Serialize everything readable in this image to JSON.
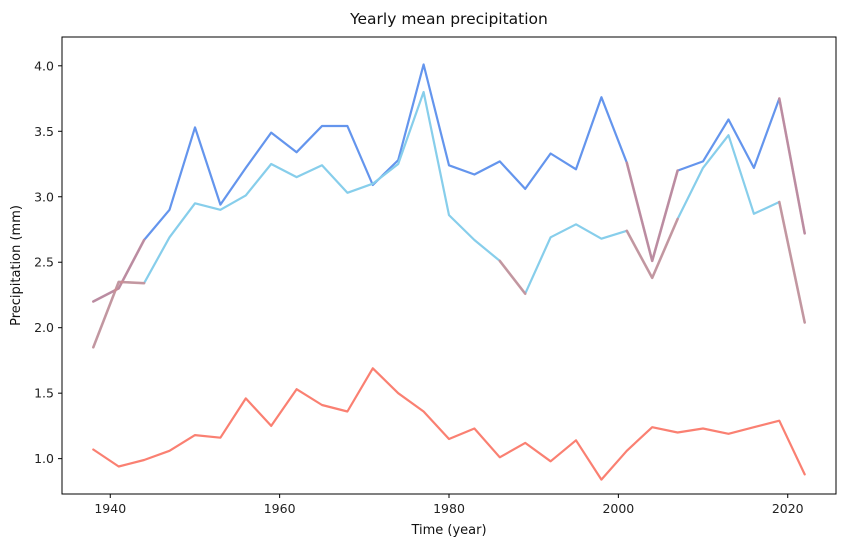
{
  "chart_data": {
    "type": "line",
    "title": "Yearly mean precipitation",
    "xlabel": "Time (year)",
    "ylabel": "Precipitation (mm)",
    "xlim": [
      1934.3,
      2025.7
    ],
    "ylim": [
      0.73,
      4.22
    ],
    "x_ticks": [
      1940,
      1960,
      1980,
      2000,
      2020
    ],
    "y_ticks": [
      1.0,
      1.5,
      2.0,
      2.5,
      3.0,
      3.5,
      4.0
    ],
    "y_tick_labels": [
      "1.0",
      "1.5",
      "2.0",
      "2.5",
      "3.0",
      "3.5",
      "4.0"
    ],
    "grid": false,
    "legend": "none",
    "x": [
      1938,
      1941,
      1944,
      1947,
      1950,
      1953,
      1956,
      1959,
      1962,
      1965,
      1968,
      1971,
      1974,
      1977,
      1980,
      1983,
      1986,
      1989,
      1992,
      1995,
      1998,
      2001,
      2004,
      2007,
      2010,
      2013,
      2016,
      2019,
      2022
    ],
    "series": [
      {
        "color": "#6495ED",
        "values": [
          2.2,
          2.3,
          2.67,
          2.9,
          3.53,
          2.94,
          3.22,
          3.49,
          3.34,
          3.54,
          3.54,
          3.09,
          3.28,
          4.01,
          3.24,
          3.17,
          3.27,
          3.06,
          3.33,
          3.21,
          3.76,
          3.26,
          2.51,
          3.2,
          3.27,
          3.59,
          3.22,
          3.75,
          2.72
        ]
      },
      {
        "color": "#87CEEB",
        "values": [
          1.85,
          2.35,
          2.34,
          2.69,
          2.95,
          2.9,
          3.01,
          3.25,
          3.15,
          3.24,
          3.03,
          3.1,
          3.25,
          3.8,
          2.86,
          2.67,
          2.51,
          2.26,
          2.69,
          2.79,
          2.68,
          2.74,
          2.38,
          2.83,
          3.22,
          3.47,
          2.87,
          2.96,
          2.04
        ]
      },
      {
        "color": "#FA8072",
        "values": [
          1.07,
          0.94,
          0.99,
          1.06,
          1.18,
          1.16,
          1.46,
          1.25,
          1.53,
          1.41,
          1.36,
          1.69,
          1.5,
          1.36,
          1.15,
          1.23,
          1.01,
          1.12,
          0.98,
          1.14,
          0.84,
          1.06,
          1.24,
          1.2,
          1.23,
          1.19,
          1.24,
          1.29,
          0.88
        ]
      }
    ],
    "overlays": [
      {
        "color": "#D08A8F",
        "segments": [
          {
            "x": [
              1938,
              1941,
              1944
            ],
            "y": [
              2.2,
              2.3,
              2.67
            ]
          },
          {
            "x": [
              1938,
              1941,
              1944
            ],
            "y": [
              1.85,
              2.35,
              2.34
            ]
          },
          {
            "x": [
              1986,
              1989
            ],
            "y": [
              2.51,
              2.26
            ]
          },
          {
            "x": [
              2001,
              2004,
              2007
            ],
            "y": [
              2.74,
              2.38,
              2.83
            ]
          },
          {
            "x": [
              2001,
              2004,
              2007
            ],
            "y": [
              3.26,
              2.51,
              3.2
            ]
          },
          {
            "x": [
              2019,
              2022
            ],
            "y": [
              3.75,
              2.72
            ]
          },
          {
            "x": [
              2019,
              2022
            ],
            "y": [
              2.96,
              2.04
            ]
          }
        ]
      }
    ]
  }
}
